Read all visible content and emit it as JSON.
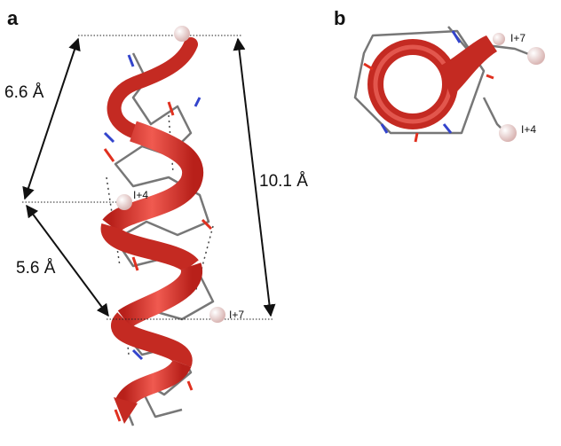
{
  "panels": [
    {
      "label": "a",
      "measurements": [
        "6.6 Å",
        "5.6 Å",
        "10.1 Å"
      ],
      "markers": [
        "I+4",
        "I+7"
      ]
    },
    {
      "label": "b",
      "markers": [
        "I+7",
        "I+4"
      ]
    }
  ]
}
